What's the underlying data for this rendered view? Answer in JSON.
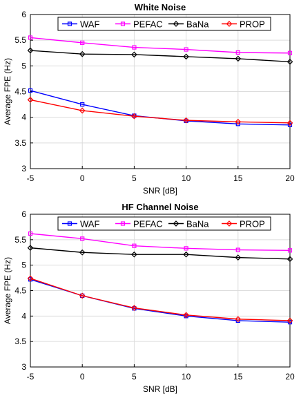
{
  "chart_data": [
    {
      "type": "line",
      "title": "White Noise",
      "xlabel": "SNR [dB]",
      "ylabel": "Average FPE (Hz)",
      "x": [
        -5,
        0,
        5,
        10,
        15,
        20
      ],
      "xlim": [
        -5,
        20
      ],
      "ylim": [
        3,
        6
      ],
      "xticks": [
        "-5",
        "0",
        "5",
        "10",
        "15",
        "20"
      ],
      "yticks": [
        "3",
        "3.5",
        "4",
        "4.5",
        "5",
        "5.5",
        "6"
      ],
      "grid": true,
      "legend_position": "top",
      "series": [
        {
          "name": "WAF",
          "color": "#0000ff",
          "marker": "square",
          "values": [
            4.52,
            4.25,
            4.03,
            3.93,
            3.87,
            3.85
          ]
        },
        {
          "name": "PEFAC",
          "color": "#ff00ff",
          "marker": "square",
          "values": [
            5.55,
            5.45,
            5.36,
            5.32,
            5.26,
            5.25
          ]
        },
        {
          "name": "BaNa",
          "color": "#000000",
          "marker": "diamond",
          "values": [
            5.3,
            5.23,
            5.22,
            5.18,
            5.14,
            5.08
          ]
        },
        {
          "name": "PROP",
          "color": "#ff0000",
          "marker": "diamond",
          "values": [
            4.34,
            4.13,
            4.02,
            3.94,
            3.91,
            3.89
          ]
        }
      ]
    },
    {
      "type": "line",
      "title": "HF Channel Noise",
      "xlabel": "SNR [dB]",
      "ylabel": "Average FPE (Hz)",
      "x": [
        -5,
        0,
        5,
        10,
        15,
        20
      ],
      "xlim": [
        -5,
        20
      ],
      "ylim": [
        3,
        6
      ],
      "xticks": [
        "-5",
        "0",
        "5",
        "10",
        "15",
        "20"
      ],
      "yticks": [
        "3",
        "3.5",
        "4",
        "4.5",
        "5",
        "5.5",
        "6"
      ],
      "grid": true,
      "legend_position": "top",
      "series": [
        {
          "name": "WAF",
          "color": "#0000ff",
          "marker": "square",
          "values": [
            4.72,
            4.4,
            4.15,
            4.0,
            3.91,
            3.88
          ]
        },
        {
          "name": "PEFAC",
          "color": "#ff00ff",
          "marker": "square",
          "values": [
            5.62,
            5.52,
            5.38,
            5.33,
            5.3,
            5.29
          ]
        },
        {
          "name": "BaNa",
          "color": "#000000",
          "marker": "diamond",
          "values": [
            5.34,
            5.25,
            5.21,
            5.21,
            5.15,
            5.12
          ]
        },
        {
          "name": "PROP",
          "color": "#ff0000",
          "marker": "diamond",
          "values": [
            4.74,
            4.4,
            4.16,
            4.02,
            3.94,
            3.91
          ]
        }
      ]
    }
  ]
}
